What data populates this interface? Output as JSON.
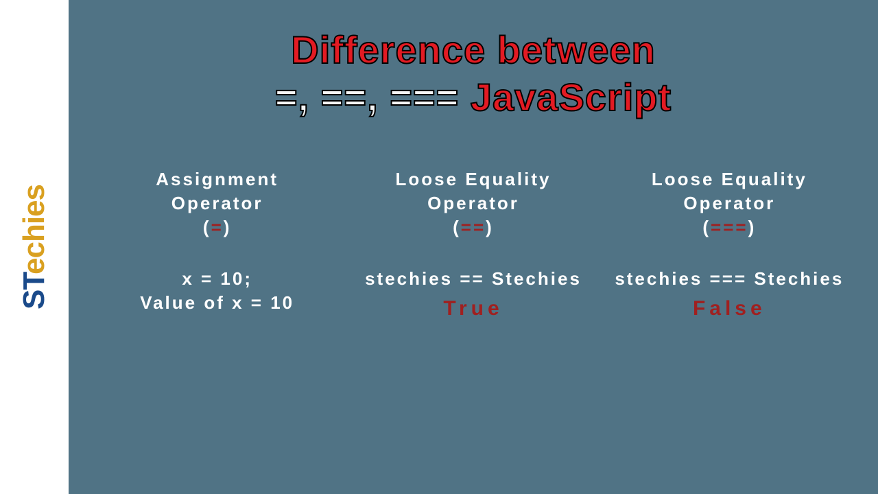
{
  "colors": {
    "background": "#507385",
    "sidebar_bg": "#ffffff",
    "title_red": "#e31b23",
    "text_white": "#ffffff",
    "operator_red": "#a02020",
    "result_red": "#a02020",
    "logo_blue": "#1a4a8a",
    "logo_gold": "#d9a020"
  },
  "logo": {
    "text": "STechies"
  },
  "title": {
    "line1": "Difference between",
    "ops": "=, ==, ===",
    "lang": "JavaScript"
  },
  "columns": [
    {
      "heading_l1": "Assignment",
      "heading_l2": "Operator",
      "symbol": "=",
      "example_l1": "x = 10;",
      "example_l2": "Value of x = 10",
      "result": ""
    },
    {
      "heading_l1": "Loose Equality",
      "heading_l2": "Operator",
      "symbol": "==",
      "example_l1": "stechies == Stechies",
      "example_l2": "",
      "result": "True"
    },
    {
      "heading_l1": "Loose Equality",
      "heading_l2": "Operator",
      "symbol": "===",
      "example_l1": "stechies === Stechies",
      "example_l2": "",
      "result": "False"
    }
  ]
}
